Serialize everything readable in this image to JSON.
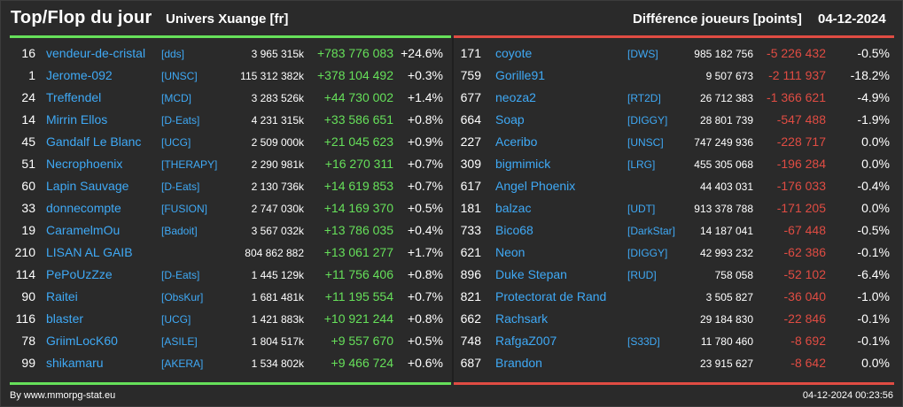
{
  "header": {
    "title": "Top/Flop du jour",
    "universe": "Univers Xuange [fr]",
    "metric": "Différence joueurs [points]",
    "date": "04-12-2024"
  },
  "colors": {
    "background": "#2a2a2a",
    "accent_top": "#66e05a",
    "accent_flop": "#e04c43",
    "link": "#3fa9f5"
  },
  "top": [
    {
      "rank": "16",
      "name": "vendeur-de-cristal",
      "tag": "[dds]",
      "total": "3 965 315k",
      "delta": "+783 776 083",
      "pct": "+24.6%"
    },
    {
      "rank": "1",
      "name": "Jerome-092",
      "tag": "[UNSC]",
      "total": "115 312 382k",
      "delta": "+378 104 492",
      "pct": "+0.3%"
    },
    {
      "rank": "24",
      "name": "Treffendel",
      "tag": "[MCD]",
      "total": "3 283 526k",
      "delta": "+44 730 002",
      "pct": "+1.4%"
    },
    {
      "rank": "14",
      "name": "Mirrin Ellos",
      "tag": "[D-Eats]",
      "total": "4 231 315k",
      "delta": "+33 586 651",
      "pct": "+0.8%"
    },
    {
      "rank": "45",
      "name": "Gandalf Le Blanc",
      "tag": "[UCG]",
      "total": "2 509 000k",
      "delta": "+21 045 623",
      "pct": "+0.9%"
    },
    {
      "rank": "51",
      "name": "Necrophoenix",
      "tag": "[THERAPY]",
      "total": "2 290 981k",
      "delta": "+16 270 311",
      "pct": "+0.7%"
    },
    {
      "rank": "60",
      "name": "Lapin Sauvage",
      "tag": "[D-Eats]",
      "total": "2 130 736k",
      "delta": "+14 619 853",
      "pct": "+0.7%"
    },
    {
      "rank": "33",
      "name": "donnecompte",
      "tag": "[FUSION]",
      "total": "2 747 030k",
      "delta": "+14 169 370",
      "pct": "+0.5%"
    },
    {
      "rank": "19",
      "name": "CaramelmOu",
      "tag": "[Badoit]",
      "total": "3 567 032k",
      "delta": "+13 786 035",
      "pct": "+0.4%"
    },
    {
      "rank": "210",
      "name": "LISAN AL GAIB",
      "tag": "",
      "total": "804 862 882",
      "delta": "+13 061 277",
      "pct": "+1.7%"
    },
    {
      "rank": "114",
      "name": "PePoUzZze",
      "tag": "[D-Eats]",
      "total": "1 445 129k",
      "delta": "+11 756 406",
      "pct": "+0.8%"
    },
    {
      "rank": "90",
      "name": "Raitei",
      "tag": "[ObsKur]",
      "total": "1 681 481k",
      "delta": "+11 195 554",
      "pct": "+0.7%"
    },
    {
      "rank": "116",
      "name": "blaster",
      "tag": "[UCG]",
      "total": "1 421 883k",
      "delta": "+10 921 244",
      "pct": "+0.8%"
    },
    {
      "rank": "78",
      "name": "GriimLocK60",
      "tag": "[ASILE]",
      "total": "1 804 517k",
      "delta": "+9 557 670",
      "pct": "+0.5%"
    },
    {
      "rank": "99",
      "name": "shikamaru",
      "tag": "[AKERA]",
      "total": "1 534 802k",
      "delta": "+9 466 724",
      "pct": "+0.6%"
    }
  ],
  "flop": [
    {
      "rank": "171",
      "name": "coyote",
      "tag": "[DWS]",
      "total": "985 182 756",
      "delta": "-5 226 432",
      "pct": "-0.5%"
    },
    {
      "rank": "759",
      "name": "Gorille91",
      "tag": "",
      "total": "9 507 673",
      "delta": "-2 111 937",
      "pct": "-18.2%"
    },
    {
      "rank": "677",
      "name": "neoza2",
      "tag": "[RT2D]",
      "total": "26 712 383",
      "delta": "-1 366 621",
      "pct": "-4.9%"
    },
    {
      "rank": "664",
      "name": "Soap",
      "tag": "[DIGGY]",
      "total": "28 801 739",
      "delta": "-547 488",
      "pct": "-1.9%"
    },
    {
      "rank": "227",
      "name": "Aceribo",
      "tag": "[UNSC]",
      "total": "747 249 936",
      "delta": "-228 717",
      "pct": "0.0%"
    },
    {
      "rank": "309",
      "name": "bigmimick",
      "tag": "[LRG]",
      "total": "455 305 068",
      "delta": "-196 284",
      "pct": "0.0%"
    },
    {
      "rank": "617",
      "name": "Angel Phoenix",
      "tag": "",
      "total": "44 403 031",
      "delta": "-176 033",
      "pct": "-0.4%"
    },
    {
      "rank": "181",
      "name": "balzac",
      "tag": "[UDT]",
      "total": "913 378 788",
      "delta": "-171 205",
      "pct": "0.0%"
    },
    {
      "rank": "733",
      "name": "Bico68",
      "tag": "[DarkStar]",
      "total": "14 187 041",
      "delta": "-67 448",
      "pct": "-0.5%"
    },
    {
      "rank": "621",
      "name": "Neon",
      "tag": "[DIGGY]",
      "total": "42 993 232",
      "delta": "-62 386",
      "pct": "-0.1%"
    },
    {
      "rank": "896",
      "name": "Duke Stepan",
      "tag": "[RUD]",
      "total": "758 058",
      "delta": "-52 102",
      "pct": "-6.4%"
    },
    {
      "rank": "821",
      "name": "Protectorat de Rand",
      "tag": "",
      "total": "3 505 827",
      "delta": "-36 040",
      "pct": "-1.0%"
    },
    {
      "rank": "662",
      "name": "Rachsark",
      "tag": "",
      "total": "29 184 830",
      "delta": "-22 846",
      "pct": "-0.1%"
    },
    {
      "rank": "748",
      "name": "RafgaZ007",
      "tag": "[S33D]",
      "total": "11 780 460",
      "delta": "-8 692",
      "pct": "-0.1%"
    },
    {
      "rank": "687",
      "name": "Brandon",
      "tag": "",
      "total": "23 915 627",
      "delta": "-8 642",
      "pct": "0.0%"
    }
  ],
  "footer": {
    "credit": "By www.mmorpg-stat.eu",
    "timestamp": "04-12-2024 00:23:56"
  }
}
